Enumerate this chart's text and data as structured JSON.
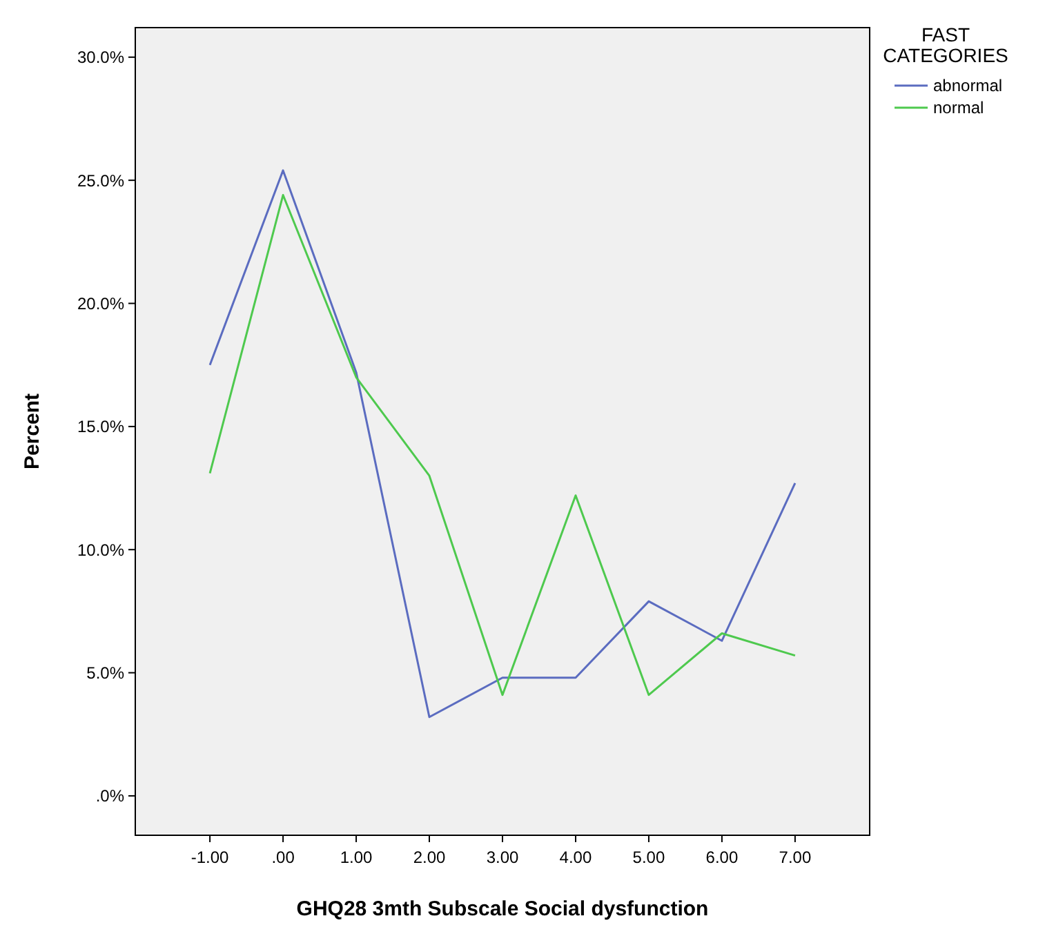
{
  "chart_data": {
    "type": "line",
    "xlabel": "GHQ28 3mth Subscale Social dysfunction",
    "ylabel": "Percent",
    "legend_title": "FAST CATEGORIES",
    "legend": "top right",
    "categories": [
      "-1.00",
      ".00",
      "1.00",
      "2.00",
      "3.00",
      "4.00",
      "5.00",
      "6.00",
      "7.00"
    ],
    "series": [
      {
        "name": "abnormal",
        "color": "#5b6cc0",
        "values": [
          17.5,
          25.4,
          17.2,
          3.2,
          4.8,
          4.8,
          7.9,
          6.3,
          12.7
        ]
      },
      {
        "name": "normal",
        "color": "#4ec94e",
        "values": [
          13.1,
          24.4,
          17.0,
          13.0,
          4.1,
          12.2,
          4.1,
          6.6,
          5.7
        ]
      }
    ],
    "ylim": [
      -1.6,
      31.2
    ],
    "yticks": [
      {
        "value": 0,
        "label": ".0%"
      },
      {
        "value": 5,
        "label": "5.0%"
      },
      {
        "value": 10,
        "label": "10.0%"
      },
      {
        "value": 15,
        "label": "15.0%"
      },
      {
        "value": 20,
        "label": "20.0%"
      },
      {
        "value": 25,
        "label": "25.0%"
      },
      {
        "value": 30,
        "label": "30.0%"
      }
    ],
    "grid": false
  }
}
